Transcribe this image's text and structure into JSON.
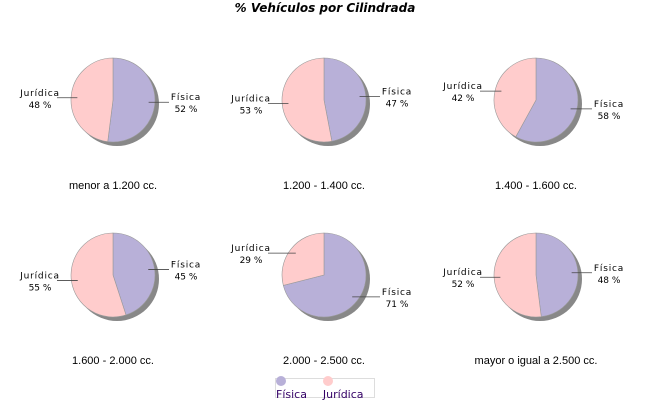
{
  "chart_data": [
    {
      "type": "pie",
      "title": "menor a 1.200 cc.",
      "slices": [
        {
          "label": "Física",
          "value": 52
        },
        {
          "label": "Jurídica",
          "value": 48
        }
      ]
    },
    {
      "type": "pie",
      "title": "1.200 - 1.400 cc.",
      "slices": [
        {
          "label": "Física",
          "value": 47
        },
        {
          "label": "Jurídica",
          "value": 53
        }
      ]
    },
    {
      "type": "pie",
      "title": "1.400 - 1.600 cc.",
      "slices": [
        {
          "label": "Física",
          "value": 58
        },
        {
          "label": "Jurídica",
          "value": 42
        }
      ]
    },
    {
      "type": "pie",
      "title": "1.600 - 2.000 cc.",
      "slices": [
        {
          "label": "Física",
          "value": 45
        },
        {
          "label": "Jurídica",
          "value": 55
        }
      ]
    },
    {
      "type": "pie",
      "title": "2.000 - 2.500 cc.",
      "slices": [
        {
          "label": "Física",
          "value": 71
        },
        {
          "label": "Jurídica",
          "value": 29
        }
      ]
    },
    {
      "type": "pie",
      "title": "mayor o igual a 2.500 cc.",
      "slices": [
        {
          "label": "Física",
          "value": 48
        },
        {
          "label": "Jurídica",
          "value": 52
        }
      ]
    }
  ],
  "title": "% Vehículos por Cilindrada",
  "legend": {
    "position": "bottom",
    "items": [
      {
        "label": "Física",
        "color": "#b8b0d8"
      },
      {
        "label": "Jurídica",
        "color": "#ffcccc"
      }
    ]
  }
}
